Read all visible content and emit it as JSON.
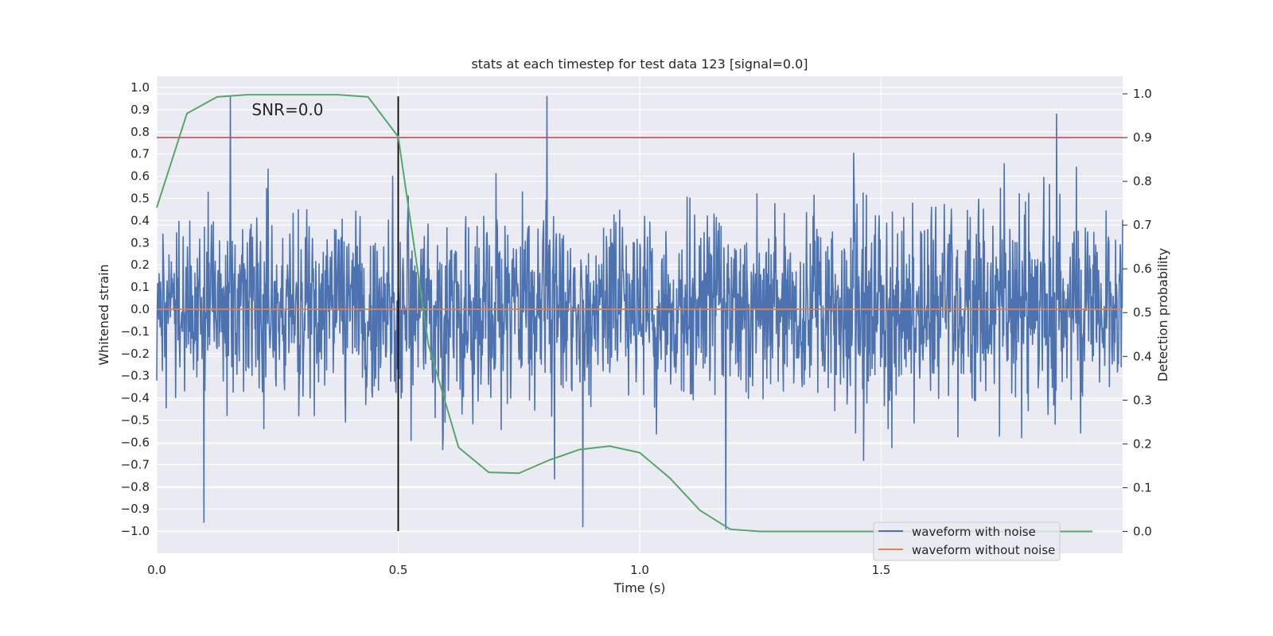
{
  "chart_data": {
    "type": "line",
    "title": "stats at each timestep for test data 123 [signal=0.0]",
    "xlabel": "Time (s)",
    "ylabel": "Whitened strain",
    "ylabel_right": "Detection probability",
    "xlim": [
      0.0,
      2.0
    ],
    "ylim": [
      -1.1,
      1.05
    ],
    "ylim_right": [
      -0.05,
      1.04
    ],
    "x_ticks": [
      0.0,
      0.5,
      1.0,
      1.5
    ],
    "x_tick_labels": [
      "0.0",
      "0.5",
      "1.0",
      "1.5"
    ],
    "y_ticks": [
      -1.0,
      -0.9,
      -0.8,
      -0.7,
      -0.6,
      -0.5,
      -0.4,
      -0.3,
      -0.2,
      -0.1,
      0.0,
      0.1,
      0.2,
      0.3,
      0.4,
      0.5,
      0.6,
      0.7,
      0.8,
      0.9,
      1.0
    ],
    "y_tick_labels": [
      "−1.0",
      "−0.9",
      "−0.8",
      "−0.7",
      "−0.6",
      "−0.5",
      "−0.4",
      "−0.3",
      "−0.2",
      "−0.1",
      "0.0",
      "0.1",
      "0.2",
      "0.3",
      "0.4",
      "0.5",
      "0.6",
      "0.7",
      "0.8",
      "0.9",
      "1.0"
    ],
    "y2_ticks": [
      0.0,
      0.1,
      0.2,
      0.3,
      0.4,
      0.5,
      0.6,
      0.7,
      0.8,
      0.9,
      1.0
    ],
    "y2_tick_labels": [
      "0.0",
      "0.1",
      "0.2",
      "0.3",
      "0.4",
      "0.5",
      "0.6",
      "0.7",
      "0.8",
      "0.9",
      "1.0"
    ],
    "grid": true,
    "annotation": {
      "text": "SNR=0.0",
      "x": 0.2,
      "y": 0.96
    },
    "threshold": {
      "axis": "right",
      "y": 0.9,
      "color": "#c44e52"
    },
    "marker_line": {
      "x": 0.5,
      "y_range": [
        -1.0,
        0.96
      ],
      "color": "#000000"
    },
    "series": [
      {
        "name": "waveform with noise",
        "axis": "left",
        "color": "#4c72b0",
        "generated": true,
        "seed": 123,
        "x_range": [
          0.0,
          2.0
        ],
        "n_points": 2048,
        "value_range": [
          -1.0,
          0.96
        ],
        "notable_points": [
          [
            0.152,
            0.96
          ],
          [
            0.098,
            -0.96
          ],
          [
            0.808,
            0.96
          ],
          [
            0.882,
            -0.98
          ],
          [
            1.178,
            -0.99
          ],
          [
            1.863,
            0.88
          ]
        ]
      },
      {
        "name": "waveform without noise",
        "axis": "left",
        "color": "#dd8452",
        "x": [
          0.0,
          2.0
        ],
        "y": [
          0.0,
          0.0
        ]
      },
      {
        "name": "detection probability",
        "axis": "right",
        "color": "#55a868",
        "in_legend": false,
        "x": [
          0.0,
          0.0625,
          0.125,
          0.1875,
          0.25,
          0.3125,
          0.375,
          0.4375,
          0.5,
          0.5625,
          0.625,
          0.6875,
          0.75,
          0.8125,
          0.875,
          0.9375,
          1.0,
          1.0625,
          1.125,
          1.1875,
          1.25,
          1.3125,
          1.9375
        ],
        "y": [
          0.74,
          0.955,
          0.993,
          0.998,
          0.998,
          0.998,
          0.998,
          0.993,
          0.902,
          0.427,
          0.192,
          0.135,
          0.133,
          0.163,
          0.187,
          0.195,
          0.18,
          0.122,
          0.048,
          0.005,
          0.0,
          0.0,
          0.0
        ]
      }
    ],
    "legend": {
      "position": "lower-right",
      "entries": [
        {
          "label": "waveform with noise",
          "color": "#4c72b0"
        },
        {
          "label": "waveform without noise",
          "color": "#dd8452"
        }
      ]
    }
  }
}
